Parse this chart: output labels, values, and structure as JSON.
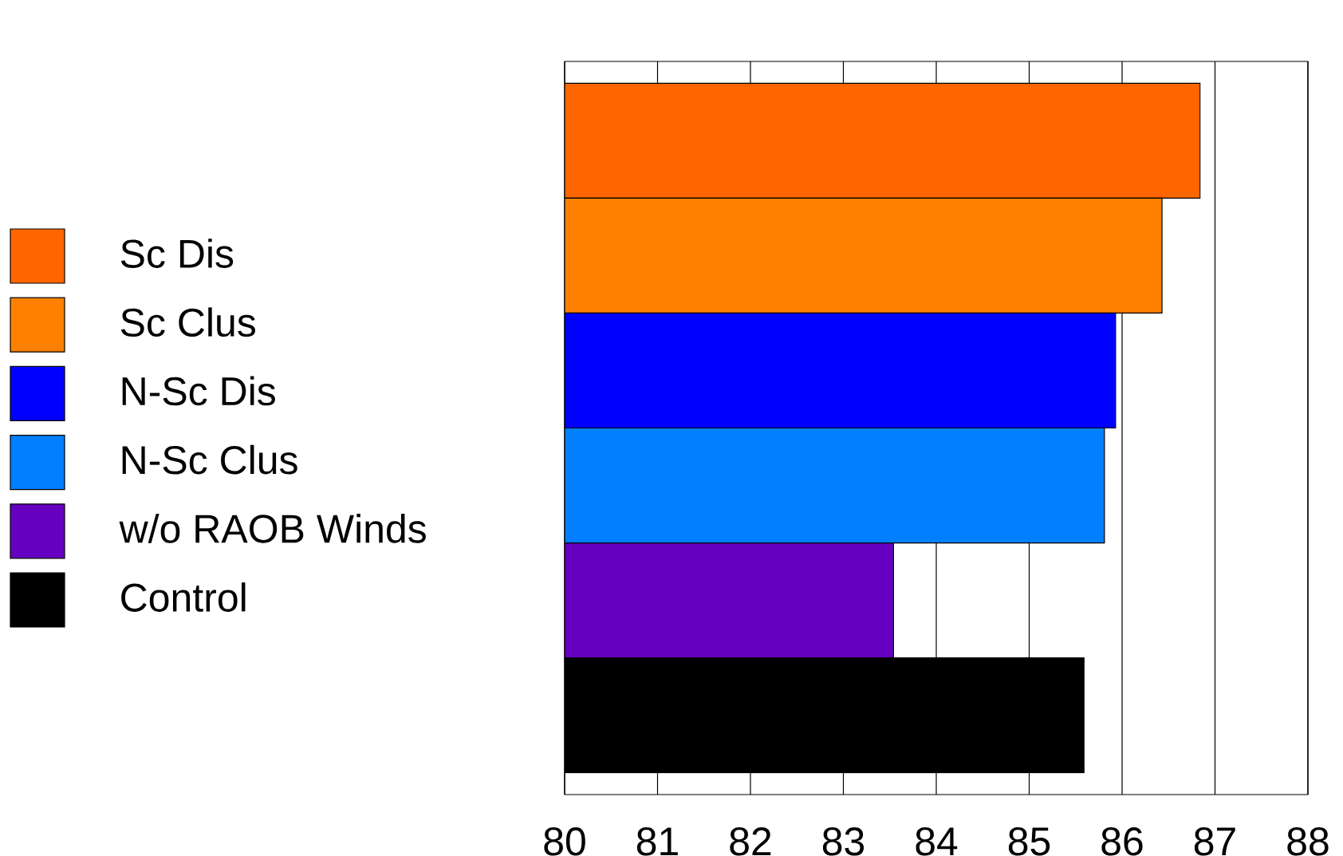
{
  "chart_data": {
    "type": "bar",
    "orientation": "horizontal",
    "categories": [
      null,
      null,
      null,
      null,
      null,
      null
    ],
    "series": [
      {
        "name": "Sc Dis",
        "color": "#ff6600",
        "values": [
          86.84,
          null,
          null,
          null,
          null,
          null
        ]
      },
      {
        "name": "Sc Clus",
        "color": "#ff8000",
        "values": [
          null,
          86.43,
          null,
          null,
          null,
          null
        ]
      },
      {
        "name": "N-Sc Dis",
        "color": "#0000ff",
        "values": [
          null,
          null,
          85.93,
          null,
          null,
          null
        ]
      },
      {
        "name": "N-Sc Clus",
        "color": "#0080ff",
        "values": [
          null,
          null,
          null,
          85.81,
          null,
          null
        ]
      },
      {
        "name": "w/o RAOB Winds",
        "color": "#6600c0",
        "values": [
          null,
          null,
          null,
          null,
          83.54,
          null
        ]
      },
      {
        "name": "Control",
        "color": "#000000",
        "values": [
          null,
          null,
          null,
          null,
          null,
          85.59
        ]
      }
    ],
    "xlim": [
      80,
      88
    ],
    "xticks": [
      80,
      81,
      82,
      83,
      84,
      85,
      86,
      87,
      88
    ],
    "grid": "x",
    "legend": "left"
  }
}
